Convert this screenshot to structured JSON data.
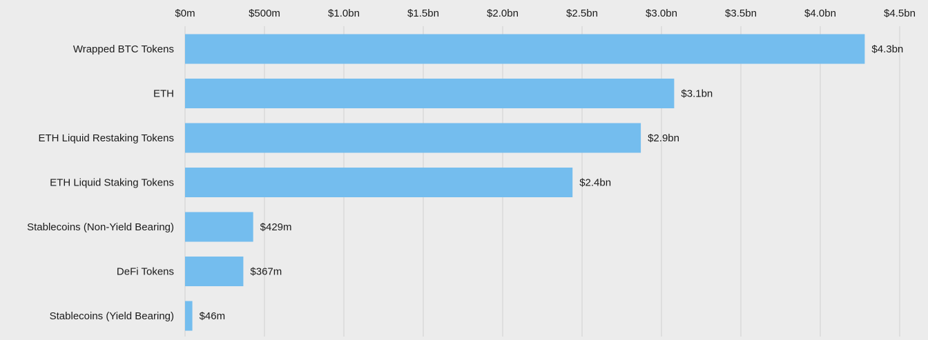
{
  "chart_data": {
    "type": "bar",
    "orientation": "horizontal",
    "title": "",
    "xlabel": "",
    "ylabel": "",
    "axis_position": "top",
    "grid": true,
    "xlim": [
      0,
      4500000000
    ],
    "x_ticks": [
      0,
      500000000,
      1000000000,
      1500000000,
      2000000000,
      2500000000,
      3000000000,
      3500000000,
      4000000000,
      4500000000
    ],
    "x_tick_labels": [
      "$0m",
      "$500m",
      "$1.0bn",
      "$1.5bn",
      "$2.0bn",
      "$2.5bn",
      "$3.0bn",
      "$3.5bn",
      "$4.0bn",
      "$4.5bn"
    ],
    "categories": [
      "Wrapped BTC Tokens",
      "ETH",
      "ETH Liquid Restaking Tokens",
      "ETH Liquid Staking Tokens",
      "Stablecoins (Non-Yield Bearing)",
      "DeFi Tokens",
      "Stablecoins (Yield Bearing)"
    ],
    "values": [
      4280000000,
      3080000000,
      2870000000,
      2440000000,
      429000000,
      367000000,
      46000000
    ],
    "data_labels": [
      "$4.3bn",
      "$3.1bn",
      "$2.9bn",
      "$2.4bn",
      "$429m",
      "$367m",
      "$46m"
    ],
    "colors": {
      "bar": "#74bdee",
      "grid": "#cfcfcf",
      "text": "#1a1a1a",
      "background": "#ececec"
    }
  }
}
